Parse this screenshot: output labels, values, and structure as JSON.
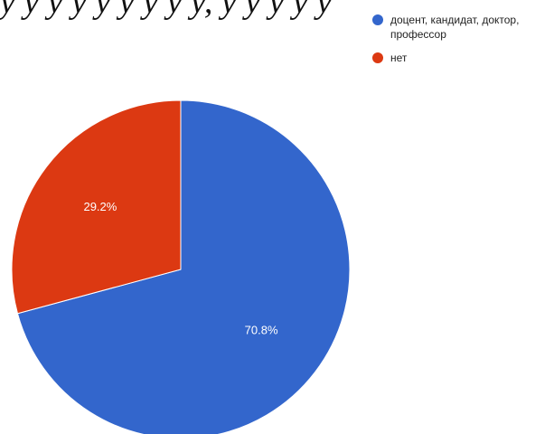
{
  "header": {
    "text": "у у у у у у у у у, у у у у у"
  },
  "chart_data": {
    "type": "pie",
    "series": [
      {
        "name": "доцент, кандидат, доктор, профессор",
        "value": 70.8,
        "label": "70.8%",
        "color": "#3366cc"
      },
      {
        "name": "нет",
        "value": 29.2,
        "label": "29.2%",
        "color": "#dc3912"
      }
    ],
    "legend_position": "top-right"
  }
}
